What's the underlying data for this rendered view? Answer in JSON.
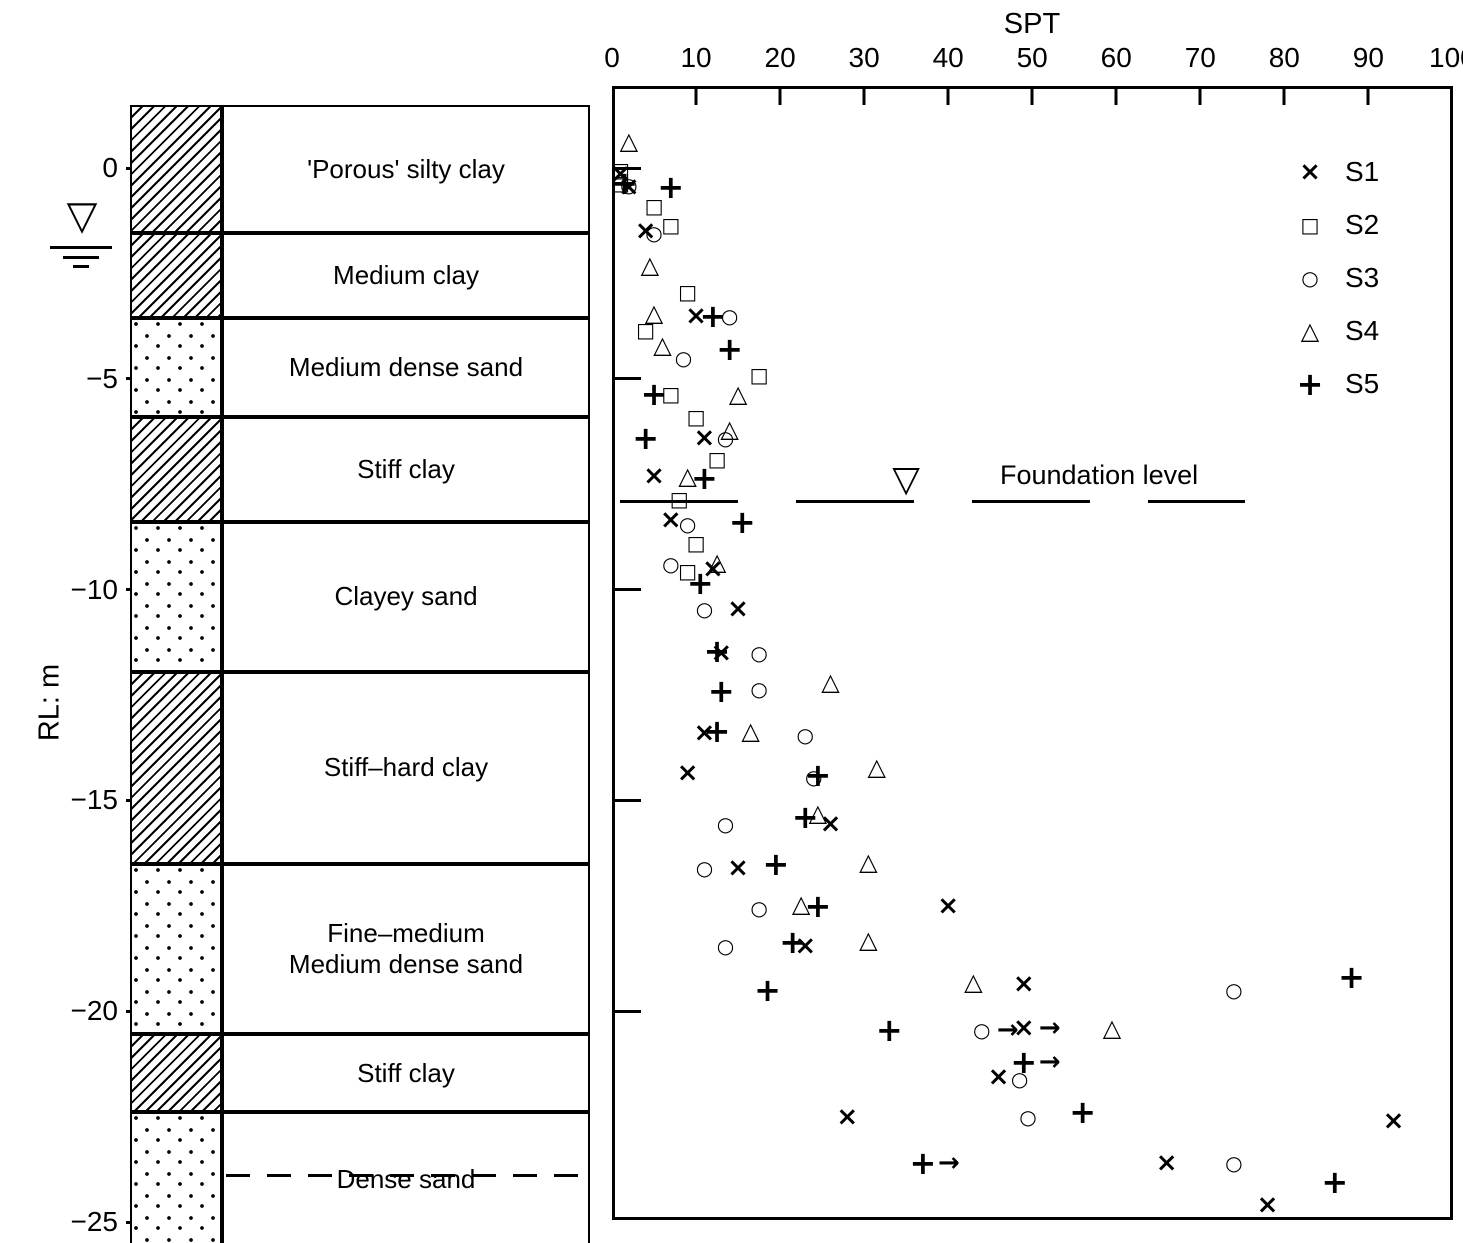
{
  "figure": {
    "x_axis_title": "SPT",
    "y_axis_title": "RL: m"
  },
  "axes": {
    "x_ticks": [
      0,
      10,
      20,
      30,
      40,
      50,
      60,
      70,
      80,
      90,
      100
    ],
    "y_ticks": [
      {
        "label": "0",
        "rl": 0
      },
      {
        "label": "−5",
        "rl": -5
      },
      {
        "label": "−10",
        "rl": -10
      },
      {
        "label": "−15",
        "rl": -15
      },
      {
        "label": "−20",
        "rl": -20
      },
      {
        "label": "−25",
        "rl": -25
      }
    ],
    "inner_tick_rls": [
      0,
      -5,
      -10,
      -15,
      -20
    ]
  },
  "glyphs": {
    "x": "×",
    "square": "□",
    "circle": "○",
    "triangle": "△",
    "plus": "+",
    "arrow": "→",
    "water_table": "▽",
    "foundation": "▽"
  },
  "legend": [
    {
      "label": "S1",
      "marker": "x"
    },
    {
      "label": "S2",
      "marker": "square"
    },
    {
      "label": "S3",
      "marker": "circle"
    },
    {
      "label": "S4",
      "marker": "triangle"
    },
    {
      "label": "S5",
      "marker": "plus"
    }
  ],
  "annotations": {
    "foundation_label": "Foundation level",
    "foundation_rl": -7.92,
    "foundation_marker_spt": 35
  },
  "borehole": {
    "layers": [
      {
        "label": "'Porous' silty clay",
        "soil": "clay",
        "top_rl": 1.5,
        "bottom_rl": -1.55
      },
      {
        "label": "Medium clay",
        "soil": "clay",
        "top_rl": -1.55,
        "bottom_rl": -3.55
      },
      {
        "label": "Medium dense sand",
        "soil": "sand",
        "top_rl": -3.55,
        "bottom_rl": -5.9
      },
      {
        "label": "Stiff clay",
        "soil": "clay",
        "top_rl": -5.9,
        "bottom_rl": -8.4
      },
      {
        "label": "Clayey sand",
        "soil": "sand",
        "top_rl": -8.4,
        "bottom_rl": -11.95
      },
      {
        "label": "Stiff–hard clay",
        "soil": "clay",
        "top_rl": -11.95,
        "bottom_rl": -16.5
      },
      {
        "label": "Fine–medium\nMedium dense sand",
        "soil": "sand",
        "top_rl": -16.5,
        "bottom_rl": -20.55
      },
      {
        "label": "Stiff clay",
        "soil": "clay",
        "top_rl": -20.55,
        "bottom_rl": -22.4
      },
      {
        "label": "Dense sand",
        "soil": "sand",
        "top_rl": -22.4,
        "bottom_rl": -25.6
      }
    ],
    "dashed_boundary_rl": -23.9,
    "water_table_rl": -1.5
  },
  "chart_data": {
    "type": "scatter",
    "xlabel": "SPT",
    "ylabel": "RL: m",
    "xlim": [
      0,
      100
    ],
    "ylim": [
      -25.5,
      1.5
    ],
    "grid": false,
    "legend_position": "upper right",
    "series": [
      {
        "name": "S1",
        "marker": "x",
        "points": [
          [
            1,
            -0.15
          ],
          [
            2,
            -0.45
          ],
          [
            4,
            -1.5
          ],
          [
            10,
            -3.5
          ],
          [
            11,
            -6.4
          ],
          [
            5,
            -7.3
          ],
          [
            7,
            -8.35
          ],
          [
            12,
            -9.5
          ],
          [
            15,
            -10.45
          ],
          [
            13,
            -11.5
          ],
          [
            11,
            -13.4
          ],
          [
            9,
            -14.35
          ],
          [
            26,
            -15.55
          ],
          [
            15,
            -16.6
          ],
          [
            40,
            -17.5
          ],
          [
            23,
            -18.45
          ],
          [
            49,
            -19.35
          ],
          [
            49,
            -20.4,
            "arrow"
          ],
          [
            46,
            -21.55
          ],
          [
            28,
            -22.5
          ],
          [
            93,
            -22.6
          ],
          [
            66,
            -23.6
          ],
          [
            78,
            -24.6
          ]
        ]
      },
      {
        "name": "S2",
        "marker": "square",
        "points": [
          [
            1,
            -0.05
          ],
          [
            1,
            -0.35
          ],
          [
            5,
            -0.9
          ],
          [
            7,
            -1.35
          ],
          [
            9,
            -2.95
          ],
          [
            4,
            -3.85
          ],
          [
            17.5,
            -4.9
          ],
          [
            7,
            -5.35
          ],
          [
            10,
            -5.9
          ],
          [
            12.5,
            -6.9
          ],
          [
            8,
            -7.85
          ],
          [
            10,
            -8.9
          ],
          [
            9,
            -9.55
          ]
        ]
      },
      {
        "name": "S3",
        "marker": "circle",
        "points": [
          [
            2,
            -0.4
          ],
          [
            5,
            -1.55
          ],
          [
            14,
            -3.5
          ],
          [
            8.5,
            -4.5
          ],
          [
            13.5,
            -6.4
          ],
          [
            9,
            -8.45
          ],
          [
            7,
            -9.4
          ],
          [
            11,
            -10.45
          ],
          [
            17.5,
            -11.5
          ],
          [
            17.5,
            -12.35
          ],
          [
            23,
            -13.45
          ],
          [
            24,
            -14.45
          ],
          [
            13.5,
            -15.55
          ],
          [
            11,
            -16.6
          ],
          [
            17.5,
            -17.55
          ],
          [
            13.5,
            -18.45
          ],
          [
            74,
            -19.5
          ],
          [
            44,
            -20.45,
            "arrow"
          ],
          [
            48.5,
            -21.6
          ],
          [
            49.5,
            -22.5
          ],
          [
            74,
            -23.6
          ]
        ]
      },
      {
        "name": "S4",
        "marker": "triangle",
        "points": [
          [
            2,
            0.65
          ],
          [
            4.5,
            -2.3
          ],
          [
            5,
            -3.45
          ],
          [
            6,
            -4.2
          ],
          [
            15,
            -5.35
          ],
          [
            14,
            -6.2
          ],
          [
            9,
            -7.3
          ],
          [
            12.5,
            -9.35
          ],
          [
            26,
            -12.2
          ],
          [
            16.5,
            -13.35
          ],
          [
            31.5,
            -14.2
          ],
          [
            24.5,
            -15.3
          ],
          [
            30.5,
            -16.45
          ],
          [
            22.5,
            -17.45
          ],
          [
            30.5,
            -18.3
          ],
          [
            43,
            -19.3
          ],
          [
            59.5,
            -20.4
          ]
        ]
      },
      {
        "name": "S5",
        "marker": "plus",
        "points": [
          [
            1.5,
            -0.35
          ],
          [
            7,
            -0.45
          ],
          [
            12,
            -3.5
          ],
          [
            14,
            -4.3
          ],
          [
            5,
            -5.35
          ],
          [
            4,
            -6.4
          ],
          [
            11,
            -7.35
          ],
          [
            15.5,
            -8.4
          ],
          [
            10.5,
            -9.85
          ],
          [
            12.5,
            -11.45
          ],
          [
            13,
            -12.4
          ],
          [
            12.5,
            -13.35
          ],
          [
            24.5,
            -14.4
          ],
          [
            23,
            -15.4
          ],
          [
            19.5,
            -16.5
          ],
          [
            24.5,
            -17.5
          ],
          [
            21.5,
            -18.35
          ],
          [
            18.5,
            -19.5
          ],
          [
            88,
            -19.2
          ],
          [
            33,
            -20.45
          ],
          [
            49,
            -21.2,
            "arrow"
          ],
          [
            56,
            -22.4
          ],
          [
            37,
            -23.6,
            "arrow"
          ],
          [
            86,
            -24.05
          ]
        ]
      }
    ]
  }
}
